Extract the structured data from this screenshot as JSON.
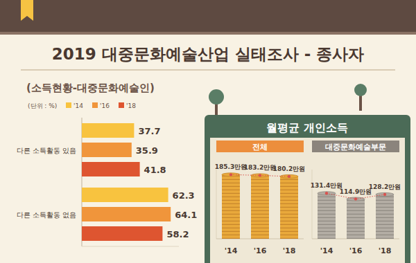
{
  "title": "2019 대중문화예술산업 실태조사 - 종사자",
  "subtitle": "(소득현황-대중문화예술인)",
  "panel_title": "월평균 개인소득",
  "chart_data": [
    {
      "type": "bar",
      "orientation": "horizontal",
      "subtitle": "(단위 : %)",
      "categories": [
        "다른 소득활동 있음",
        "다른 소득활동 없음"
      ],
      "series": [
        {
          "name": "'14",
          "color": "#f8c33f",
          "values": [
            37.7,
            62.3
          ]
        },
        {
          "name": "'16",
          "color": "#f0953b",
          "values": [
            35.9,
            64.1
          ]
        },
        {
          "name": "'18",
          "color": "#de5530",
          "values": [
            41.8,
            58.2
          ]
        }
      ],
      "xlim": [
        0,
        70
      ],
      "legend": "top",
      "data_labels": true,
      "tick_labels": "y"
    },
    {
      "type": "bar",
      "title": "전체",
      "categories": [
        "'14",
        "'16",
        "'18"
      ],
      "values": [
        185.3,
        183.2,
        180.2
      ],
      "value_labels": [
        "185.3만원",
        "183.2만원",
        "180.2만원"
      ],
      "color": "#e9a93b",
      "ylim": [
        0,
        200
      ],
      "data_labels": true,
      "tick_labels": "x",
      "marker": "circle",
      "line_style": "dotted"
    },
    {
      "type": "bar",
      "title": "대중문화예술부문",
      "categories": [
        "'14",
        "'16",
        "'18"
      ],
      "values": [
        131.4,
        114.9,
        128.2
      ],
      "value_labels": [
        "131.4만원",
        "114.9만원",
        "128.2만원"
      ],
      "color": "#b3ada4",
      "ylim": [
        0,
        200
      ],
      "data_labels": true,
      "tick_labels": "x",
      "marker": "circle",
      "line_style": "dotted"
    }
  ]
}
